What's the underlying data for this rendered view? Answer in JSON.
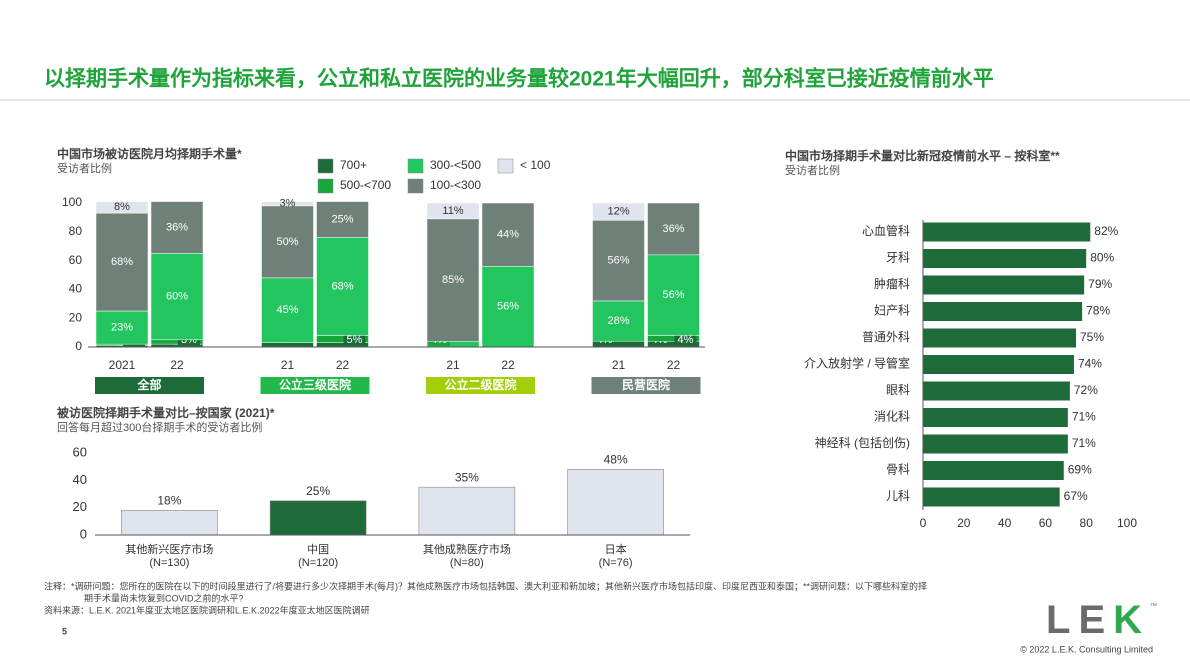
{
  "header": {
    "title": "以择期手术量作为指标来看，公立和私立医院的业务量较2021年大幅回升，部分科室已接近疫情前水平"
  },
  "chart_data": [
    {
      "type": "bar",
      "stacked": true,
      "title": "中国市场被访医院月均择期手术量*",
      "subtitle": "受访者比例",
      "categories": [
        "2021",
        "22",
        "21",
        "22",
        "21",
        "22",
        "21",
        "22"
      ],
      "groups": [
        {
          "name": "全部",
          "color": "#1e6b3a"
        },
        {
          "name": "公立三级医院",
          "color": "#22b84a"
        },
        {
          "name": "公立二级医院",
          "color": "#a3cf0a"
        },
        {
          "name": "民营医院",
          "color": "#6f8078"
        }
      ],
      "series": [
        {
          "name": "700+",
          "color": "#1e6b3a",
          "values": [
            1,
            2,
            3,
            3,
            null,
            null,
            4,
            4
          ],
          "value_labels": [
            "1%",
            "2%",
            "3%",
            "3%",
            null,
            null,
            "4%",
            "4%"
          ]
        },
        {
          "name": "500-<700",
          "color": "#15a63c",
          "values": [
            1,
            3,
            null,
            5,
            null,
            null,
            null,
            4
          ],
          "value_labels": [
            "1%",
            "3%",
            null,
            "5%",
            null,
            null,
            null,
            "4%"
          ]
        },
        {
          "name": "300-<500",
          "color": "#22c55e",
          "values": [
            23,
            60,
            45,
            68,
            4,
            56,
            28,
            56
          ],
          "value_labels": [
            "23%",
            "60%",
            "45%",
            "68%",
            "4%",
            "56%",
            "28%",
            "56%"
          ]
        },
        {
          "name": "100-<300",
          "color": "#6f8078",
          "values": [
            68,
            36,
            50,
            25,
            85,
            44,
            56,
            36
          ],
          "value_labels": [
            "68%",
            "36%",
            "50%",
            "25%",
            "85%",
            "44%",
            "56%",
            "36%"
          ]
        },
        {
          "name": "< 100",
          "color": "#dfe4ee",
          "values": [
            8,
            null,
            3,
            null,
            11,
            null,
            12,
            null
          ],
          "value_labels": [
            "8%",
            null,
            "3%",
            null,
            "11%",
            null,
            "12%",
            null
          ]
        }
      ],
      "ylim": [
        0,
        100
      ],
      "yticks": [
        0,
        20,
        40,
        60,
        80,
        100
      ]
    },
    {
      "type": "bar",
      "title": "被访医院择期手术量对比–按国家 (2021)*",
      "subtitle": "回答每月超过300台择期手术的受访者比例",
      "categories": [
        "其他新兴医疗市场",
        "中国",
        "其他成熟医疗市场",
        "日本"
      ],
      "category_notes": [
        "(N=130)",
        "(N=120)",
        "(N=80)",
        "(N=76)"
      ],
      "values": [
        18,
        25,
        35,
        48
      ],
      "value_labels": [
        "18%",
        "25%",
        "35%",
        "48%"
      ],
      "colors": [
        "#dfe4ee",
        "#1e6b3a",
        "#dfe4ee",
        "#dfe4ee"
      ],
      "ylim": [
        0,
        60
      ],
      "yticks": [
        0,
        20,
        40,
        60
      ]
    },
    {
      "type": "bar",
      "orientation": "horizontal",
      "title": "中国市场择期手术量对比新冠疫情前水平 – 按科室**",
      "subtitle": "受访者比例",
      "categories": [
        "心血管科",
        "牙科",
        "肿瘤科",
        "妇产科",
        "普通外科",
        "介入放射学 / 导管室",
        "眼科",
        "消化科",
        "神经科 (包括创伤)",
        "骨科",
        "儿科"
      ],
      "values": [
        82,
        80,
        79,
        78,
        75,
        74,
        72,
        71,
        71,
        69,
        67
      ],
      "value_labels": [
        "82%",
        "80%",
        "79%",
        "78%",
        "75%",
        "74%",
        "72%",
        "71%",
        "71%",
        "69%",
        "67%"
      ],
      "color": "#1e6b3a",
      "xlim": [
        0,
        100
      ],
      "xticks": [
        0,
        20,
        40,
        60,
        80,
        100
      ]
    }
  ],
  "footnotes": [
    "注释：*调研问题：您所在的医院在以下的时间段里进行了/将要进行多少次择期手术(每月)？其他成熟医疗市场包括韩国、澳大利亚和新加坡；其他新兴医疗市场包括印度、印度尼西亚和泰国；**调研问题：以下哪些科室的择",
    "期手术量尚未恢复到COVID之前的水平?"
  ],
  "source": "资料来源：L.E.K. 2021年度亚太地区医院调研和L.E.K.2022年度亚太地区医院调研",
  "page_number": "5",
  "logo": {
    "text": "LEK",
    "mark": "™"
  },
  "copyright": "© 2022 L.E.K. Consulting Limited"
}
